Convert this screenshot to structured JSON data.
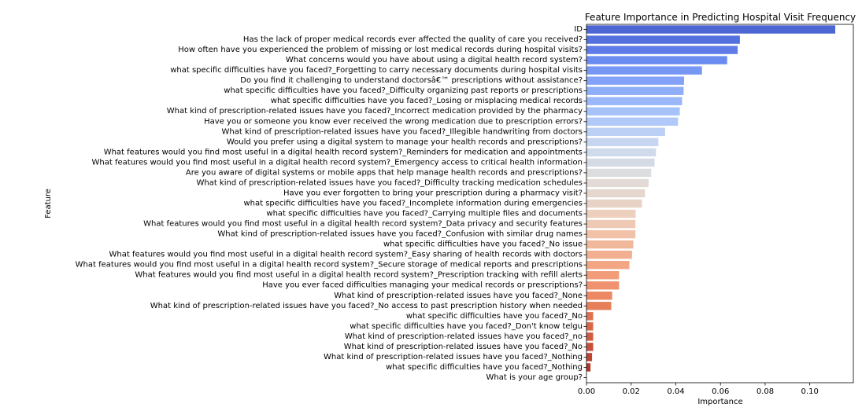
{
  "chart_data": {
    "type": "bar",
    "orientation": "horizontal",
    "title": "Feature Importance in Predicting Hospital Visit Frequency",
    "xlabel": "Importance",
    "ylabel": "Feature",
    "xlim": [
      0,
      0.1195
    ],
    "xticks": [
      "0.00",
      "0.02",
      "0.04",
      "0.06",
      "0.08",
      "0.10"
    ],
    "xtick_values": [
      0,
      0.02,
      0.04,
      0.06,
      0.08,
      0.1
    ],
    "grid": false,
    "palette": "coolwarm",
    "categories": [
      "ID",
      "Has the lack of proper medical records ever affected the quality of care you received?",
      "How often have you experienced the problem of missing or lost medical records during hospital visits?",
      "What concerns would you have about using a digital health record system?",
      "what specific difficulties have you faced?_Forgetting to carry necessary documents during hospital visits",
      "Do you find it challenging to understand doctorsâ€™ prescriptions without assistance?",
      "what specific difficulties have you faced?_Difficulty organizing past reports or prescriptions",
      "what specific difficulties have you faced?_Losing or misplacing medical records",
      "What kind of prescription-related issues have you faced?_Incorrect medication provided by the pharmacy",
      "Have you or someone you know ever received the wrong medication due to prescription errors?",
      "What kind of prescription-related issues have you faced?_Illegible handwriting from doctors",
      "Would you prefer using a digital system to manage your health records and prescriptions?",
      "What features would you find most useful in a digital health record system?_Reminders for medication and appointments",
      "What features would you find most useful in a digital health record system?_Emergency access to critical health information",
      "Are you aware of digital systems or mobile apps that help manage health records and prescriptions?",
      "What kind of prescription-related issues have you faced?_Difficulty tracking medication schedules",
      "Have you ever forgotten to bring your prescription during a pharmacy visit?",
      "what specific difficulties have you faced?_Incomplete information during emergencies",
      "what specific difficulties have you faced?_Carrying multiple files and documents",
      "What features would you find most useful in a digital health record system?_Data privacy and security features",
      "What kind of prescription-related issues have you faced?_Confusion with similar drug names",
      "what specific difficulties have you faced?_No issue",
      "What features would you find most useful in a digital health record system?_Easy sharing of health records with doctors",
      "What features would you find most useful in a digital health record system?_Secure storage of medical reports and prescriptions",
      "What features would you find most useful in a digital health record system?_Prescription tracking with refill alerts",
      "Have you ever faced difficulties managing your medical records or prescriptions?",
      "What kind of prescription-related issues have you faced?_None",
      "What kind of prescription-related issues have you faced?_No access to past prescription history when needed",
      "what specific difficulties have you faced?_No",
      "what specific difficulties have you faced?_Don't know telgu",
      "What kind of prescription-related issues have you faced?_no",
      "What kind of prescription-related issues have you faced?_No",
      "What kind of prescription-related issues have you faced?_Nothing",
      "what specific difficulties have you faced?_Nothing",
      "What is your age group?"
    ],
    "values": [
      0.1114,
      0.0687,
      0.0677,
      0.063,
      0.0517,
      0.0437,
      0.0435,
      0.0428,
      0.0418,
      0.041,
      0.0352,
      0.0322,
      0.0311,
      0.0305,
      0.029,
      0.0278,
      0.0262,
      0.0248,
      0.022,
      0.0219,
      0.0219,
      0.021,
      0.0204,
      0.0192,
      0.0146,
      0.0146,
      0.0115,
      0.0111,
      0.003,
      0.003,
      0.003,
      0.003,
      0.0025,
      0.0018,
      0.0
    ],
    "colors": [
      "#4c66d4",
      "#5470de",
      "#5f7be7",
      "#6a8cf0",
      "#7797f5",
      "#84a3f8",
      "#8faef9",
      "#9ab8f9",
      "#a6c3f9",
      "#b1c9f8",
      "#bccff4",
      "#c6d6f1",
      "#cfdaeb",
      "#d5dbe5",
      "#dcdddf",
      "#e1dad6",
      "#e5d6ce",
      "#e8d1c5",
      "#ecd0bd",
      "#eec9b3",
      "#f1c1a8",
      "#f2b89c",
      "#f3af91",
      "#f3a684",
      "#f29c79",
      "#ef926f",
      "#ec8864",
      "#e5805a",
      "#df7350",
      "#d86847",
      "#d05c40",
      "#c84f39",
      "#c04232",
      "#b5342a",
      "#b40426"
    ]
  }
}
